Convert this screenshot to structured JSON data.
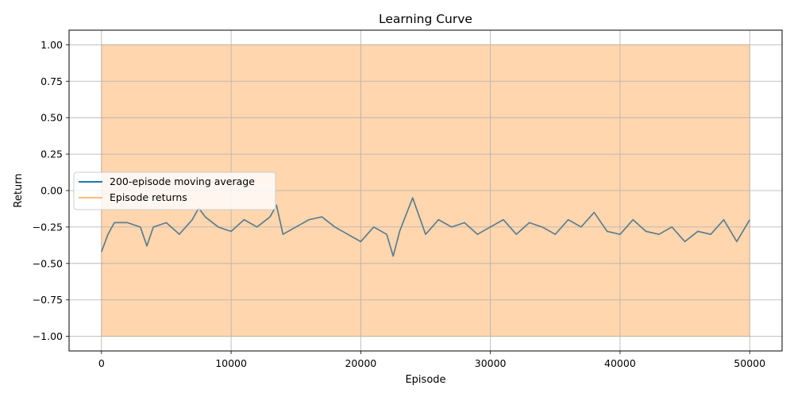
{
  "chart_data": {
    "type": "line",
    "title": "Learning Curve",
    "xlabel": "Episode",
    "ylabel": "Return",
    "xlim": [
      -2500,
      52500
    ],
    "ylim": [
      -1.1,
      1.1
    ],
    "xticks": [
      0,
      10000,
      20000,
      30000,
      40000,
      50000
    ],
    "xtick_labels": [
      "0",
      "10000",
      "20000",
      "30000",
      "40000",
      "50000"
    ],
    "yticks": [
      1.0,
      0.75,
      0.5,
      0.25,
      0.0,
      -0.25,
      -0.5,
      -0.75,
      -1.0
    ],
    "ytick_labels": [
      "1.00",
      "0.75",
      "0.50",
      "0.25",
      "0.00",
      "−0.25",
      "−0.50",
      "−0.75",
      "−1.00"
    ],
    "grid": true,
    "legend_position": "center-left",
    "series": [
      {
        "name": "200-episode moving average",
        "color": "#1f77b4",
        "x": [
          0,
          500,
          1000,
          2000,
          3000,
          3500,
          4000,
          5000,
          6000,
          7000,
          7500,
          8000,
          9000,
          10000,
          11000,
          12000,
          13000,
          13500,
          14000,
          15000,
          16000,
          17000,
          18000,
          19000,
          20000,
          21000,
          22000,
          22500,
          23000,
          24000,
          25000,
          26000,
          27000,
          28000,
          29000,
          30000,
          31000,
          32000,
          33000,
          34000,
          35000,
          36000,
          37000,
          38000,
          39000,
          40000,
          41000,
          42000,
          43000,
          44000,
          45000,
          46000,
          47000,
          48000,
          49000,
          50000
        ],
        "y": [
          -0.42,
          -0.3,
          -0.22,
          -0.22,
          -0.25,
          -0.38,
          -0.25,
          -0.22,
          -0.3,
          -0.2,
          -0.12,
          -0.18,
          -0.25,
          -0.28,
          -0.2,
          -0.25,
          -0.18,
          -0.1,
          -0.3,
          -0.25,
          -0.2,
          -0.18,
          -0.25,
          -0.3,
          -0.35,
          -0.25,
          -0.3,
          -0.45,
          -0.28,
          -0.05,
          -0.3,
          -0.2,
          -0.25,
          -0.22,
          -0.3,
          -0.25,
          -0.2,
          -0.3,
          -0.22,
          -0.25,
          -0.3,
          -0.2,
          -0.25,
          -0.15,
          -0.28,
          -0.3,
          -0.2,
          -0.28,
          -0.3,
          -0.25,
          -0.35,
          -0.28,
          -0.3,
          -0.2,
          -0.35,
          -0.2
        ]
      },
      {
        "name": "Episode returns",
        "color": "#ffbb78",
        "type": "area",
        "x": [
          0,
          50000
        ],
        "upper": [
          1.0,
          1.0
        ],
        "lower": [
          -1.0,
          -1.0
        ]
      }
    ]
  }
}
